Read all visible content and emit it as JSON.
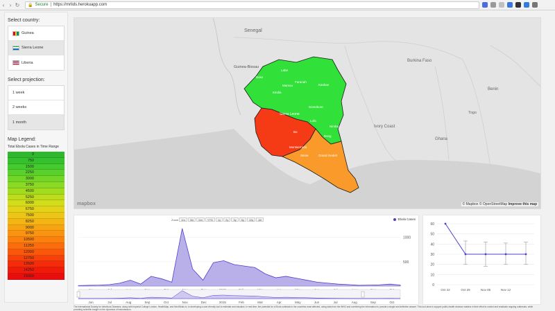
{
  "browser": {
    "secure_label": "Secure",
    "url": "https://mrlids.herokuapp.com"
  },
  "sidebar": {
    "country_label": "Select country:",
    "countries": [
      {
        "label": "Guinea",
        "active": false
      },
      {
        "label": "Sierra Leone",
        "active": true
      },
      {
        "label": "Liberia",
        "active": false
      }
    ],
    "projection_label": "Select projection:",
    "projections": [
      {
        "label": "1 week",
        "active": false
      },
      {
        "label": "2 weeks",
        "active": false
      },
      {
        "label": "1 month",
        "active": true
      }
    ],
    "legend_label": "Map Legend:",
    "legend_subtitle": "Total Ebola Cases in Time Range",
    "legend_items": [
      {
        "value": "0",
        "color": "#2db82d"
      },
      {
        "value": "750",
        "color": "#35c12d"
      },
      {
        "value": "1500",
        "color": "#45cb2d"
      },
      {
        "value": "2250",
        "color": "#5ad02a"
      },
      {
        "value": "3000",
        "color": "#72d626"
      },
      {
        "value": "3750",
        "color": "#8bd922"
      },
      {
        "value": "4500",
        "color": "#a3dc1e"
      },
      {
        "value": "5250",
        "color": "#bcdc1c"
      },
      {
        "value": "6000",
        "color": "#d4dc1a"
      },
      {
        "value": "6750",
        "color": "#e3d318"
      },
      {
        "value": "7500",
        "color": "#edc516"
      },
      {
        "value": "8250",
        "color": "#f4b414"
      },
      {
        "value": "9000",
        "color": "#f8a312"
      },
      {
        "value": "9750",
        "color": "#fb9210"
      },
      {
        "value": "10500",
        "color": "#fc800e"
      },
      {
        "value": "11250",
        "color": "#fc6c0c"
      },
      {
        "value": "12000",
        "color": "#fb570b"
      },
      {
        "value": "12750",
        "color": "#f8410a"
      },
      {
        "value": "13500",
        "color": "#f52b0a"
      },
      {
        "value": "14250",
        "color": "#f01a0b"
      },
      {
        "value": "15000",
        "color": "#ea0d0d"
      }
    ]
  },
  "map": {
    "labels": {
      "senegal": "Senegal",
      "guinea_bissau": "Guinea-Bissau",
      "burkina": "Burkina Faso",
      "ivory": "Ivory Coast",
      "ghana": "Ghana",
      "togo": "Togo",
      "benin": "Benin",
      "sierra_leone": "Sierra Leone",
      "boke": "Boke",
      "labe": "Labe",
      "mamou": "Mamou",
      "kindia": "Kindia",
      "faranah": "Faranah",
      "kankan": "Kankan",
      "nzerekore": "Nzerekore",
      "lofa": "Lofa",
      "bong": "Bong",
      "nimba": "Nimba",
      "bo": "Bo",
      "grand_gedeh": "Grand Gedeh",
      "sinoe": "Sinoe",
      "montserrado": "Montserrado"
    },
    "attribution_mapbox": "© Mapbox",
    "attribution_osm": "© OpenStreetMap",
    "improve": "Improve this map",
    "logo": "mapbox"
  },
  "timeline": {
    "zoom_label": "Zoom",
    "zoom_buttons": [
      "1m",
      "3m",
      "6m",
      "YTD",
      "1y",
      "2y",
      "3y",
      "5y",
      "10y",
      "All"
    ],
    "legend": "Ebola Cases",
    "y_ticks": [
      "1000",
      "500"
    ],
    "x_ticks": [
      "Jun",
      "Jul",
      "Aug",
      "Sep",
      "Oct",
      "Nov",
      "Dec",
      "2015",
      "Feb",
      "Mar",
      "Apr",
      "May",
      "Jun",
      "Jul",
      "Aug",
      "Sep",
      "Oct"
    ],
    "nav_ticks": [
      "Jun",
      "Jul",
      "Aug",
      "Sep",
      "Oct",
      "Nov",
      "Dec",
      "2015",
      "Feb",
      "Mar",
      "Apr",
      "May",
      "Jun",
      "Jul",
      "Aug",
      "Sep",
      "Oct"
    ]
  },
  "chart_data": [
    {
      "type": "area",
      "series": [
        {
          "name": "Ebola Cases",
          "values": [
            10,
            15,
            20,
            30,
            60,
            120,
            40,
            200,
            150,
            80,
            1180,
            350,
            120,
            480,
            520,
            440,
            410,
            380,
            250,
            170,
            200,
            160,
            120,
            80,
            60,
            40,
            30,
            15,
            20,
            25,
            40,
            20
          ]
        }
      ],
      "x": [
        "Jun",
        "Jun",
        "Jul",
        "Jul",
        "Aug",
        "Aug",
        "Sep",
        "Sep",
        "Oct",
        "Oct",
        "Oct",
        "Nov",
        "Nov",
        "Nov",
        "Dec",
        "Dec",
        "2015",
        "2015",
        "Feb",
        "Feb",
        "Mar",
        "Mar",
        "Apr",
        "Apr",
        "May",
        "May",
        "Jun",
        "Jul",
        "Aug",
        "Sep",
        "Oct",
        "Oct"
      ],
      "ylim": [
        0,
        1250
      ],
      "color": "#4b3fcf"
    },
    {
      "type": "line",
      "categories": [
        "Oct 22",
        "Oct 29",
        "Nov 05",
        "Nov 12",
        ""
      ],
      "values": [
        60,
        30,
        30,
        30,
        30
      ],
      "error_low": [
        null,
        20,
        18,
        20,
        20
      ],
      "error_high": [
        null,
        43,
        42,
        41,
        42
      ],
      "y_ticks": [
        "60",
        "50",
        "40",
        "30",
        "20",
        "10",
        "0"
      ],
      "ylim": [
        0,
        60
      ],
      "color": "#4b3fcf"
    }
  ],
  "footer": {
    "text": "The International Society for Infectious Diseases, along with Imperial College London, HealthMap, and NextStrain.io, is developing a user-friendly tool to estimate and visualize, in real time, the potential for a Ebola outbreak in the countries most affected, using data from the WHO and combining the information to provide a single and definitive answer. This tool aims to support public-health decision makers in their effort to control and eradicate ongoing outbreaks, while providing scientific insight on the dynamics of transmission."
  }
}
